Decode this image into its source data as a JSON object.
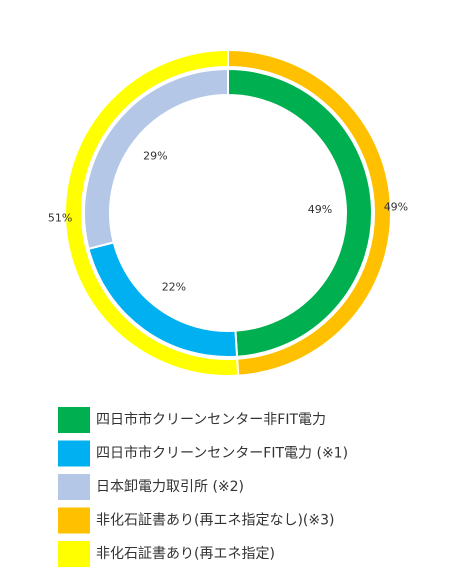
{
  "chart_data": {
    "type": "donut",
    "rings": [
      {
        "labels": [
          "四日市市クリーンセンター非FIT電力",
          "四日市市クリーンセンターFIT電力 (※1)",
          "日本卸電力取引所 (※2)"
        ],
        "colors": [
          "#00b050",
          "#00b0f0",
          "#b4c7e7"
        ],
        "values": [
          49,
          22,
          29
        ],
        "value_labels": [
          "49%",
          "22%",
          "29%"
        ]
      },
      {
        "labels": [
          "非化石証書あり(再エネ指定なし)(※3)",
          "非化石証書あり(再エネ指定)"
        ],
        "colors": [
          "#ffc000",
          "#ffff00"
        ],
        "values": [
          49,
          51
        ],
        "value_labels": [
          "49%",
          "51%"
        ]
      }
    ]
  }
}
